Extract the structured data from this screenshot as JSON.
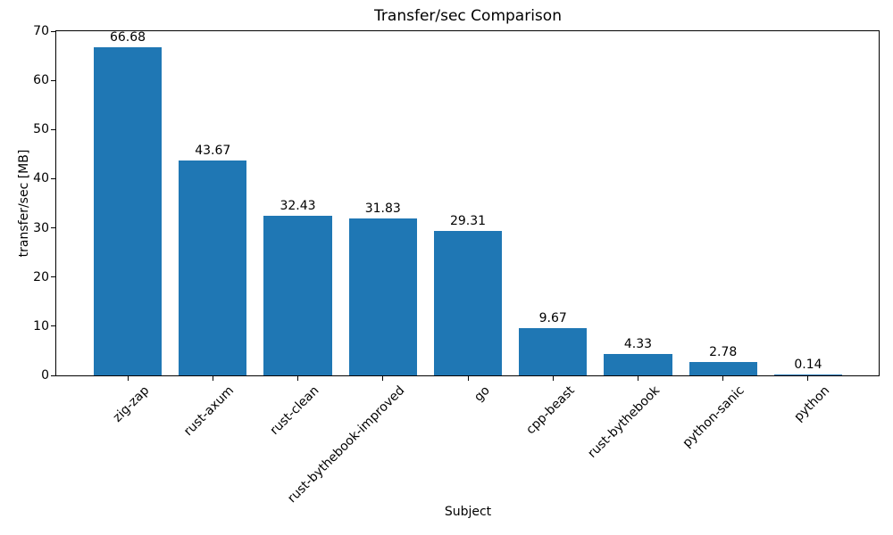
{
  "chart_data": {
    "type": "bar",
    "title": "Transfer/sec Comparison",
    "xlabel": "Subject",
    "ylabel": "transfer/sec [MB]",
    "categories": [
      "zig-zap",
      "rust-axum",
      "rust-clean",
      "rust-bythebook-improved",
      "go",
      "cpp-beast",
      "rust-bythebook",
      "python-sanic",
      "python"
    ],
    "values": [
      66.68,
      43.67,
      32.43,
      31.83,
      29.31,
      9.67,
      4.33,
      2.78,
      0.14
    ],
    "bar_labels": [
      "66.68",
      "43.67",
      "32.43",
      "31.83",
      "29.31",
      "9.67",
      "4.33",
      "2.78",
      "0.14"
    ],
    "ylim": [
      0,
      70
    ],
    "yticks": [
      0,
      10,
      20,
      30,
      40,
      50,
      60,
      70
    ],
    "xtick_rotation_deg": 45,
    "bar_color": "#1f77b4",
    "axis_color": "#000000",
    "text_color": "#000000",
    "background_color": "#ffffff",
    "grid": false,
    "legend_position": "none"
  }
}
